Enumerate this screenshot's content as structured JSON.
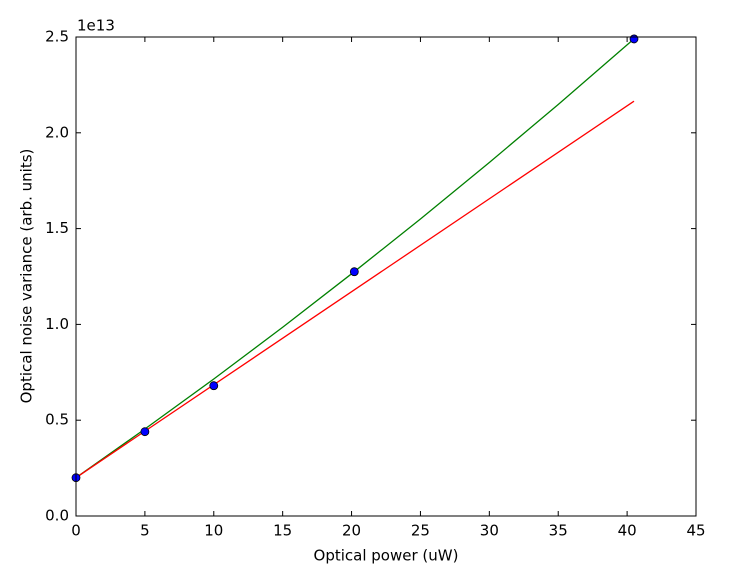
{
  "chart_data": {
    "type": "line",
    "xlabel": "Optical power (uW)",
    "ylabel": "Optical noise variance (arb. units)",
    "y_offset_label": "1e13",
    "xlim": [
      0,
      45
    ],
    "xticks": [
      0,
      5,
      10,
      15,
      20,
      25,
      30,
      35,
      40,
      45
    ],
    "ylim": [
      0,
      2.5
    ],
    "yticks": [
      {
        "value": 0,
        "label": "0.0"
      },
      {
        "value": 0.5,
        "label": "0.5"
      },
      {
        "value": 1,
        "label": "1.0"
      },
      {
        "value": 1.5,
        "label": "1.5"
      },
      {
        "value": 2,
        "label": "2.0"
      },
      {
        "value": 2.5,
        "label": "2.5"
      }
    ],
    "series": [
      {
        "type": "line",
        "color": "#008000",
        "x": [
          0,
          5,
          10,
          15,
          20,
          25,
          30,
          35,
          40.5
        ],
        "values": [
          0.2,
          0.454,
          0.715,
          0.985,
          1.264,
          1.55,
          1.845,
          2.148,
          2.49
        ]
      },
      {
        "type": "line",
        "color": "#ff0000",
        "x": [
          0,
          40.5
        ],
        "values": [
          0.2,
          2.165
        ]
      },
      {
        "type": "scatter",
        "color": "#0000ff",
        "x": [
          0,
          5,
          10,
          20.2,
          40.5
        ],
        "values": [
          0.2,
          0.44,
          0.68,
          1.275,
          2.49
        ]
      }
    ]
  }
}
